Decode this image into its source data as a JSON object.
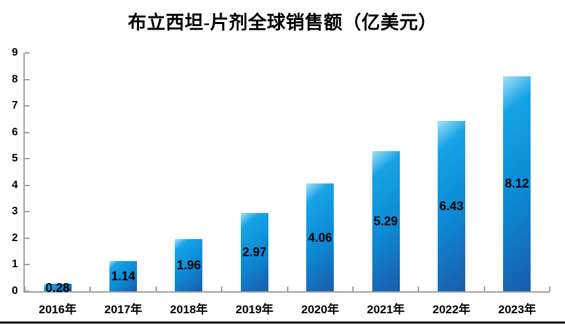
{
  "chart_data": {
    "type": "bar",
    "title": "布立西坦-片剂全球销售额（亿美元）",
    "categories": [
      "2016年",
      "2017年",
      "2018年",
      "2019年",
      "2020年",
      "2021年",
      "2022年",
      "2023年"
    ],
    "values": [
      0.28,
      1.14,
      1.96,
      2.97,
      4.06,
      5.29,
      6.43,
      8.12
    ],
    "data_labels": [
      "0.28",
      "1.14",
      "1.96",
      "2.97",
      "4.06",
      "5.29",
      "6.43",
      "8.12"
    ],
    "xlabel": "",
    "ylabel": "",
    "ylim": [
      0,
      9
    ],
    "yticks": [
      0,
      1,
      2,
      3,
      4,
      5,
      6,
      7,
      8,
      9
    ],
    "grid": false,
    "legend": null,
    "colors": {
      "bar_gradient": [
        "#a5e0f8",
        "#16a3e6",
        "#0c8ad5",
        "#1a5cab"
      ],
      "axis": "#a0a0a0",
      "text": "#000000",
      "background": "#ffffff",
      "bottom_rule": "#000000"
    }
  }
}
